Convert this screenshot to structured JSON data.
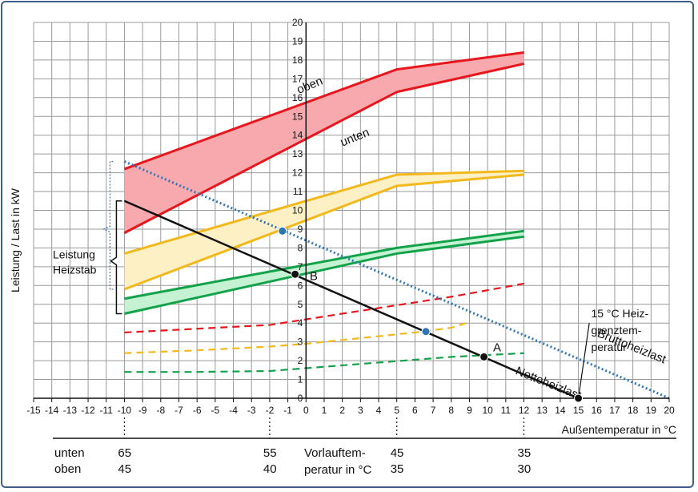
{
  "chart_data": {
    "type": "line",
    "title": "",
    "xlabel": "Außentemperatur in °C",
    "ylabel": "Leistung / Last in kW",
    "xlim": [
      -15,
      20
    ],
    "ylim": [
      0,
      20
    ],
    "grid": true,
    "x_ticks": [
      -15,
      -14,
      -13,
      -12,
      -11,
      -10,
      -9,
      -8,
      -7,
      -6,
      -5,
      -4,
      -3,
      -2,
      -1,
      0,
      1,
      2,
      3,
      4,
      5,
      6,
      7,
      8,
      9,
      10,
      11,
      12,
      13,
      14,
      15,
      16,
      17,
      18,
      19,
      20
    ],
    "y_ticks": [
      0,
      1,
      2,
      3,
      4,
      5,
      6,
      7,
      8,
      9,
      10,
      11,
      12,
      13,
      14,
      15,
      16,
      17,
      18,
      19,
      20
    ],
    "bands": [
      {
        "name": "red band",
        "color": "#e8161d",
        "fill": "#f8a9ae",
        "upper": {
          "x": [
            -10,
            5,
            12
          ],
          "y": [
            12.2,
            17.5,
            18.4
          ]
        },
        "lower": {
          "x": [
            -10,
            5,
            12
          ],
          "y": [
            8.8,
            16.3,
            17.8
          ]
        }
      },
      {
        "name": "yellow band",
        "color": "#f2b81c",
        "fill": "#fdf0c4",
        "upper": {
          "x": [
            -10,
            5,
            12
          ],
          "y": [
            7.7,
            11.9,
            12.1
          ]
        },
        "lower": {
          "x": [
            -10,
            5,
            12
          ],
          "y": [
            5.8,
            11.3,
            11.9
          ]
        }
      },
      {
        "name": "green band",
        "color": "#12a34a",
        "fill": "#c6f2d4",
        "upper": {
          "x": [
            -10,
            5,
            12
          ],
          "y": [
            5.3,
            8.0,
            8.9
          ]
        },
        "lower": {
          "x": [
            -10,
            5,
            12
          ],
          "y": [
            4.5,
            7.7,
            8.6
          ]
        }
      }
    ],
    "dashed_series": [
      {
        "name": "red dashed",
        "color": "#e8161d",
        "x": [
          -10,
          -6,
          -2,
          0,
          2,
          4,
          6,
          8,
          10,
          12
        ],
        "y": [
          3.5,
          3.7,
          3.9,
          4.2,
          4.5,
          4.8,
          5.1,
          5.4,
          5.75,
          6.1
        ]
      },
      {
        "name": "yellow dashed",
        "color": "#f2b81c",
        "x": [
          -10,
          -6,
          -2,
          0,
          2,
          4,
          6,
          8,
          8.8
        ],
        "y": [
          2.4,
          2.55,
          2.75,
          2.9,
          3.1,
          3.3,
          3.5,
          3.75,
          4.0
        ]
      },
      {
        "name": "green dashed",
        "color": "#12a34a",
        "x": [
          -10,
          -6,
          -2,
          0,
          2,
          4,
          6,
          8,
          10,
          12
        ],
        "y": [
          1.4,
          1.4,
          1.45,
          1.6,
          1.75,
          1.9,
          2.05,
          2.2,
          2.3,
          2.4
        ]
      }
    ],
    "nettoheizlast": {
      "color": "#111111",
      "x": [
        -10,
        15
      ],
      "y": [
        10.5,
        0
      ]
    },
    "bruttoheizlast": {
      "color": "#2e75b6",
      "x": [
        -10,
        20
      ],
      "y": [
        12.6,
        0
      ]
    },
    "points": [
      {
        "label": "B",
        "x": -0.6,
        "y": 6.6,
        "color": "#111111"
      },
      {
        "label": "A",
        "x": 9.8,
        "y": 2.2,
        "color": "#111111"
      },
      {
        "label": "",
        "x": 15,
        "y": 0,
        "color": "#111111"
      },
      {
        "label": "",
        "x": -1.3,
        "y": 8.9,
        "color": "#2e75b6"
      },
      {
        "label": "",
        "x": 6.6,
        "y": 3.55,
        "color": "#2e75b6"
      }
    ],
    "annotations": [
      {
        "text": "oben",
        "x": -0.4,
        "y": 16.2,
        "rotate": -22
      },
      {
        "text": "unten",
        "x": 2.0,
        "y": 13.4,
        "rotate": -22
      },
      {
        "text": "Bruttoheizlast",
        "x": 16.0,
        "y": 3.3,
        "rotate": 22
      },
      {
        "text": "Nettoheizlast",
        "x": 11.5,
        "y": 1.3,
        "rotate": 22
      },
      {
        "text": "A",
        "x": 10.3,
        "y": 2.5,
        "rotate": 0
      },
      {
        "text": "B",
        "x": 0.2,
        "y": 6.3,
        "rotate": 0
      }
    ],
    "heizgrenz_label": [
      "15 °C Heiz-",
      "grenztem-",
      "peratur"
    ],
    "leistung_heizstab": [
      "Leistung",
      "Heizstab"
    ],
    "vorlauf_table": {
      "row_labels": [
        "unten",
        "oben"
      ],
      "middle_label": [
        "Vorlauftem-",
        "peratur in °C"
      ],
      "columns": [
        {
          "x": -10,
          "unten": "65",
          "oben": "45"
        },
        {
          "x": -2,
          "unten": "55",
          "oben": "40"
        },
        {
          "x": 5,
          "unten": "45",
          "oben": "35"
        },
        {
          "x": 12,
          "unten": "35",
          "oben": "30"
        }
      ]
    }
  }
}
